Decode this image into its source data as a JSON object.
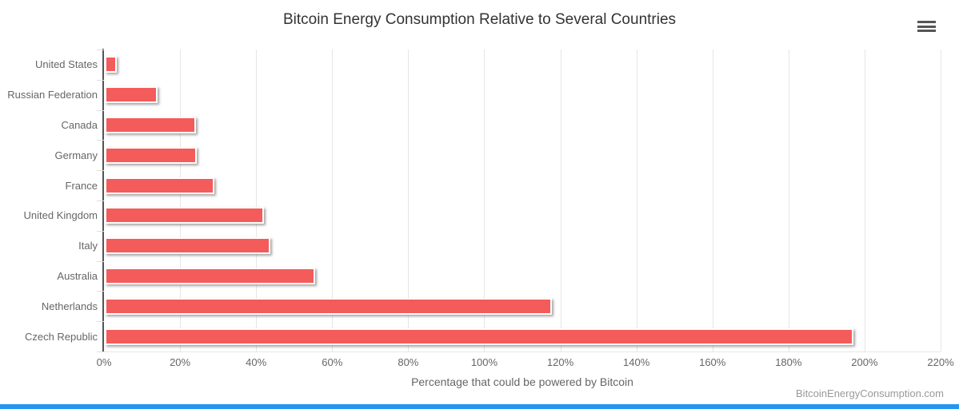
{
  "chart_data": {
    "type": "bar",
    "orientation": "horizontal",
    "title": "Bitcoin Energy Consumption Relative to Several Countries",
    "categories": [
      "United States",
      "Russian Federation",
      "Canada",
      "Germany",
      "France",
      "United Kingdom",
      "Italy",
      "Australia",
      "Netherlands",
      "Czech Republic"
    ],
    "values": [
      3.1,
      13.8,
      23.9,
      24.2,
      28.8,
      41.9,
      43.6,
      55.4,
      117.5,
      196.9
    ],
    "unit": "%",
    "xlabel": "Percentage that could be powered by Bitcoin",
    "ylabel": "",
    "xlim": [
      0,
      220
    ],
    "x_tick_step": 20,
    "x_tick_labels": [
      "0%",
      "20%",
      "40%",
      "60%",
      "80%",
      "100%",
      "120%",
      "140%",
      "160%",
      "180%",
      "200%",
      "220%"
    ],
    "grid": true,
    "legend": false,
    "colors": {
      "bar": "#f45b5b",
      "grid": "#e6e6e6",
      "axis_line": "#555555",
      "tick_label": "#666666",
      "category_label": "#666666",
      "title": "#333333",
      "watermark": "#999999",
      "footer_accent": "#2196f3"
    }
  },
  "watermark": "BitcoinEnergyConsumption.com",
  "icons": {
    "menu": "hamburger-menu-icon"
  }
}
